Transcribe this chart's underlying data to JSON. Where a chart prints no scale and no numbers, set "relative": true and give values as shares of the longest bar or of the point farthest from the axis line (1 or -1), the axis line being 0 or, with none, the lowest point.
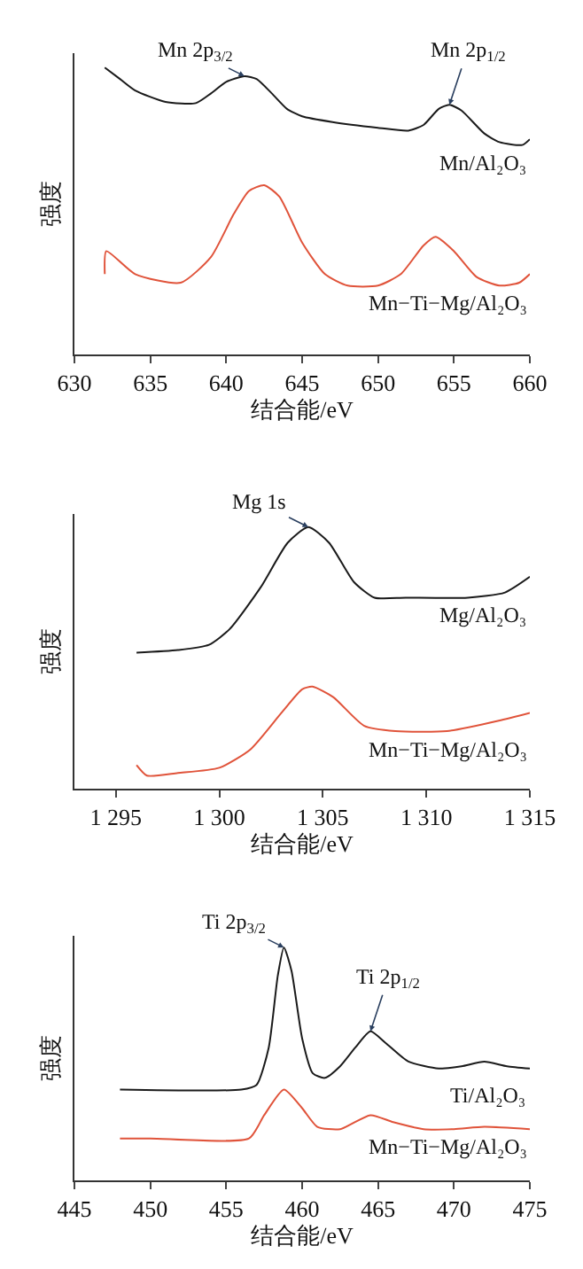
{
  "chart_data": [
    {
      "type": "line",
      "relative": true,
      "xlabel": "结合能/eV",
      "ylabel": "强度",
      "xlim": [
        630,
        660
      ],
      "xticks": [
        630,
        635,
        640,
        645,
        650,
        655,
        660
      ],
      "tick_labels": "x",
      "legend": false,
      "series": [
        {
          "name": "Mn/Al₂O₃",
          "color": "#1a1a1a",
          "x": [
            632,
            633,
            634,
            636,
            638,
            639,
            640,
            641.2,
            642,
            643,
            644,
            645,
            647,
            650,
            652,
            653,
            654,
            654.7,
            655.5,
            657,
            658,
            659.5,
            660
          ],
          "values": [
            1.0,
            0.96,
            0.92,
            0.88,
            0.876,
            0.91,
            0.95,
            0.97,
            0.96,
            0.91,
            0.856,
            0.83,
            0.81,
            0.79,
            0.78,
            0.8,
            0.856,
            0.87,
            0.85,
            0.77,
            0.74,
            0.73,
            0.75
          ]
        },
        {
          "name": "Mn−Ti−Mg/Al₂O₃",
          "color": "#e0533a",
          "x": [
            632,
            632.1,
            634,
            637,
            639,
            640.5,
            641.5,
            642.5,
            643.5,
            645,
            646.5,
            648,
            650,
            651.5,
            653,
            653.8,
            655,
            656.5,
            658,
            659.3,
            660
          ],
          "values": [
            0.28,
            0.36,
            0.28,
            0.25,
            0.34,
            0.49,
            0.57,
            0.59,
            0.55,
            0.39,
            0.28,
            0.24,
            0.24,
            0.28,
            0.38,
            0.41,
            0.36,
            0.27,
            0.24,
            0.25,
            0.28
          ]
        }
      ],
      "annotations": [
        {
          "text": "Mn 2p$_{3/2}$",
          "x": 641.2,
          "y": 0.97
        },
        {
          "text": "Mn 2p$_{1/2}$",
          "x": 654.7,
          "y": 0.87
        }
      ]
    },
    {
      "type": "line",
      "relative": true,
      "xlabel": "结合能/eV",
      "ylabel": "强度",
      "xlim": [
        1293,
        1315
      ],
      "xticks": [
        {
          "value": 1295,
          "label": "1 295"
        },
        {
          "value": 1300,
          "label": "1 300"
        },
        {
          "value": 1305,
          "label": "1 305"
        },
        {
          "value": 1310,
          "label": "1 310"
        },
        {
          "value": 1315,
          "label": "1 315"
        }
      ],
      "tick_labels": "x",
      "legend": false,
      "series": [
        {
          "name": "Mg/Al₂O₃",
          "color": "#1a1a1a",
          "x": [
            1296,
            1298,
            1299.5,
            1300.5,
            1302,
            1303.3,
            1304.3,
            1305.3,
            1306.5,
            1307.5,
            1309,
            1312,
            1313.8,
            1315
          ],
          "values": [
            0.52,
            0.53,
            0.55,
            0.61,
            0.77,
            0.94,
            1.0,
            0.94,
            0.79,
            0.73,
            0.73,
            0.73,
            0.75,
            0.81
          ]
        },
        {
          "name": "Mn−Ti−Mg/Al₂O₃",
          "color": "#e0533a",
          "x": [
            1296,
            1296.5,
            1298,
            1300,
            1301.5,
            1303,
            1304,
            1304.5,
            1305.5,
            1307,
            1308.5,
            1311,
            1313.5,
            1315
          ],
          "values": [
            0.09,
            0.05,
            0.06,
            0.08,
            0.15,
            0.29,
            0.38,
            0.39,
            0.35,
            0.24,
            0.22,
            0.22,
            0.26,
            0.29
          ]
        }
      ],
      "annotations": [
        {
          "text": "Mg 1s",
          "x": 1304.3,
          "y": 1.0
        }
      ]
    },
    {
      "type": "line",
      "relative": true,
      "xlabel": "结合能/eV",
      "ylabel": "强度",
      "xlim": [
        445,
        475
      ],
      "xticks": [
        445,
        450,
        455,
        460,
        465,
        470,
        475
      ],
      "tick_labels": "x",
      "legend": false,
      "series": [
        {
          "name": "Ti/Al₂O₃",
          "color": "#1a1a1a",
          "x": [
            448,
            456,
            457,
            457.8,
            458.4,
            458.8,
            459.3,
            460,
            460.7,
            461.5,
            462.5,
            463.5,
            464.5,
            465.5,
            467,
            469,
            470.5,
            472,
            473.5,
            475
          ],
          "values": [
            0.39,
            0.39,
            0.41,
            0.57,
            0.88,
            1.0,
            0.9,
            0.61,
            0.46,
            0.44,
            0.49,
            0.57,
            0.64,
            0.59,
            0.51,
            0.48,
            0.49,
            0.51,
            0.49,
            0.48
          ]
        },
        {
          "name": "Mn−Ti−Mg/Al₂O₃",
          "color": "#e0533a",
          "x": [
            448,
            450,
            456.5,
            457.5,
            458.8,
            460,
            461,
            462.5,
            464.5,
            466,
            468,
            470,
            472,
            475
          ],
          "values": [
            0.18,
            0.18,
            0.18,
            0.28,
            0.39,
            0.31,
            0.23,
            0.22,
            0.28,
            0.25,
            0.22,
            0.22,
            0.23,
            0.22
          ]
        }
      ],
      "annotations": [
        {
          "text": "Ti 2p$_{3/2}$",
          "x": 458.8,
          "y": 1.0
        },
        {
          "text": "Ti 2p$_{1/2}$",
          "x": 464.5,
          "y": 0.64
        }
      ]
    }
  ]
}
